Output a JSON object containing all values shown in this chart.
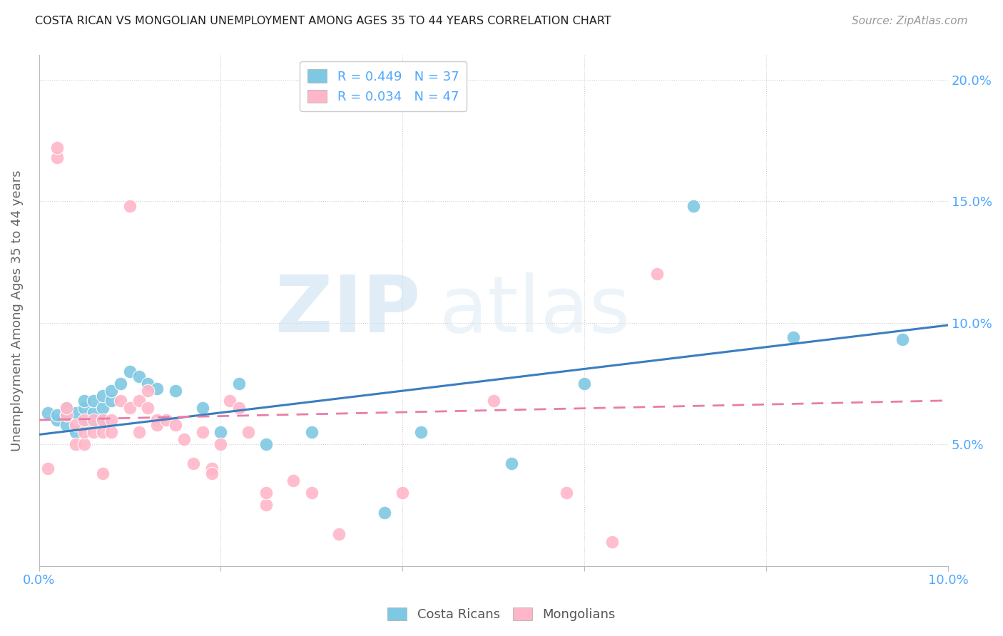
{
  "title": "COSTA RICAN VS MONGOLIAN UNEMPLOYMENT AMONG AGES 35 TO 44 YEARS CORRELATION CHART",
  "source": "Source: ZipAtlas.com",
  "ylabel": "Unemployment Among Ages 35 to 44 years",
  "xlim": [
    0.0,
    0.1
  ],
  "ylim": [
    0.0,
    0.21
  ],
  "xticks": [
    0.0,
    0.02,
    0.04,
    0.06,
    0.08,
    0.1
  ],
  "yticks": [
    0.0,
    0.05,
    0.1,
    0.15,
    0.2
  ],
  "xtick_labels": [
    "0.0%",
    "",
    "",
    "",
    "",
    "10.0%"
  ],
  "ytick_labels_left": [
    "",
    "",
    "",
    "",
    ""
  ],
  "ytick_labels_right": [
    "",
    "5.0%",
    "10.0%",
    "15.0%",
    "20.0%"
  ],
  "costa_rican_R": 0.449,
  "costa_rican_N": 37,
  "mongolian_R": 0.034,
  "mongolian_N": 47,
  "blue_color": "#7ec8e3",
  "pink_color": "#ffb6c8",
  "blue_line_color": "#3a7ebf",
  "pink_line_color": "#e87da8",
  "axis_color": "#4da6ff",
  "grid_color": "#d0d0d0",
  "costa_rican_x": [
    0.001,
    0.002,
    0.002,
    0.003,
    0.003,
    0.003,
    0.004,
    0.004,
    0.005,
    0.005,
    0.005,
    0.006,
    0.006,
    0.006,
    0.007,
    0.007,
    0.007,
    0.008,
    0.008,
    0.009,
    0.01,
    0.011,
    0.012,
    0.013,
    0.015,
    0.018,
    0.02,
    0.022,
    0.025,
    0.03,
    0.038,
    0.042,
    0.052,
    0.06,
    0.072,
    0.083,
    0.095
  ],
  "costa_rican_y": [
    0.063,
    0.06,
    0.062,
    0.058,
    0.062,
    0.065,
    0.055,
    0.063,
    0.058,
    0.065,
    0.068,
    0.06,
    0.063,
    0.068,
    0.06,
    0.065,
    0.07,
    0.068,
    0.072,
    0.075,
    0.08,
    0.078,
    0.075,
    0.073,
    0.072,
    0.065,
    0.055,
    0.075,
    0.05,
    0.055,
    0.022,
    0.055,
    0.042,
    0.075,
    0.148,
    0.094,
    0.093
  ],
  "mongolian_x": [
    0.001,
    0.002,
    0.002,
    0.003,
    0.003,
    0.004,
    0.004,
    0.005,
    0.005,
    0.005,
    0.006,
    0.006,
    0.007,
    0.007,
    0.007,
    0.008,
    0.008,
    0.009,
    0.01,
    0.01,
    0.011,
    0.011,
    0.012,
    0.012,
    0.013,
    0.013,
    0.014,
    0.015,
    0.016,
    0.017,
    0.018,
    0.019,
    0.019,
    0.02,
    0.021,
    0.022,
    0.023,
    0.025,
    0.025,
    0.028,
    0.03,
    0.033,
    0.04,
    0.05,
    0.058,
    0.063,
    0.068
  ],
  "mongolian_y": [
    0.04,
    0.168,
    0.172,
    0.062,
    0.065,
    0.05,
    0.058,
    0.05,
    0.055,
    0.06,
    0.055,
    0.06,
    0.055,
    0.06,
    0.038,
    0.055,
    0.06,
    0.068,
    0.148,
    0.065,
    0.068,
    0.055,
    0.065,
    0.072,
    0.06,
    0.058,
    0.06,
    0.058,
    0.052,
    0.042,
    0.055,
    0.04,
    0.038,
    0.05,
    0.068,
    0.065,
    0.055,
    0.025,
    0.03,
    0.035,
    0.03,
    0.013,
    0.03,
    0.068,
    0.03,
    0.01,
    0.12
  ],
  "cr_trend": [
    0.054,
    0.099
  ],
  "mn_trend": [
    0.06,
    0.068
  ],
  "trend_x": [
    0.0,
    0.1
  ]
}
